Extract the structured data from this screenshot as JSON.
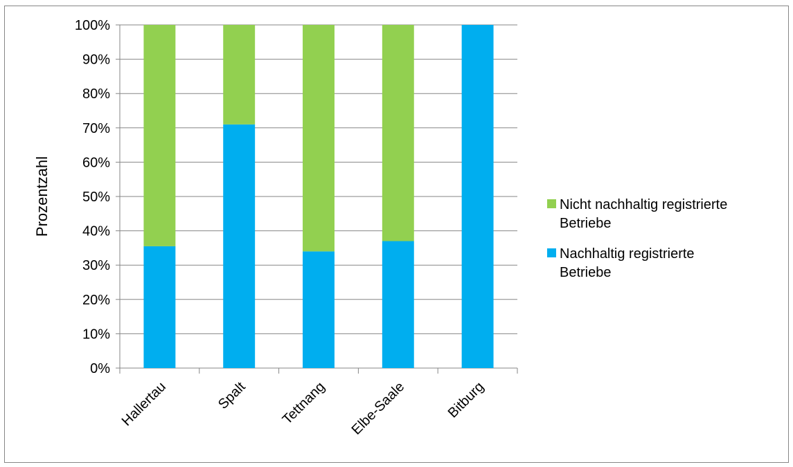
{
  "chart_data": {
    "type": "bar",
    "stacked": true,
    "percent": true,
    "categories": [
      "Hallertau",
      "Spalt",
      "Tettnang",
      "Elbe-Saale",
      "Bitburg"
    ],
    "series": [
      {
        "name": "Nachhaltig registrierte Betriebe",
        "color": "#00AEEF",
        "values": [
          35.5,
          71,
          34,
          37,
          100
        ]
      },
      {
        "name": "Nicht nachhaltig registrierte Betriebe",
        "color": "#92D050",
        "values": [
          64.5,
          29,
          66,
          63,
          0
        ]
      }
    ],
    "ylabel": "Prozentzahl",
    "ylim": [
      0,
      100
    ],
    "yticks": [
      "0%",
      "10%",
      "20%",
      "30%",
      "40%",
      "50%",
      "60%",
      "70%",
      "80%",
      "90%",
      "100%"
    ],
    "grid": true,
    "legend_position": "right",
    "legend": [
      {
        "lines": [
          "Nicht nachhaltig registrierte",
          "Betriebe"
        ],
        "color": "#92D050"
      },
      {
        "lines": [
          "Nachhaltig registrierte",
          "Betriebe"
        ],
        "color": "#00AEEF"
      }
    ]
  }
}
